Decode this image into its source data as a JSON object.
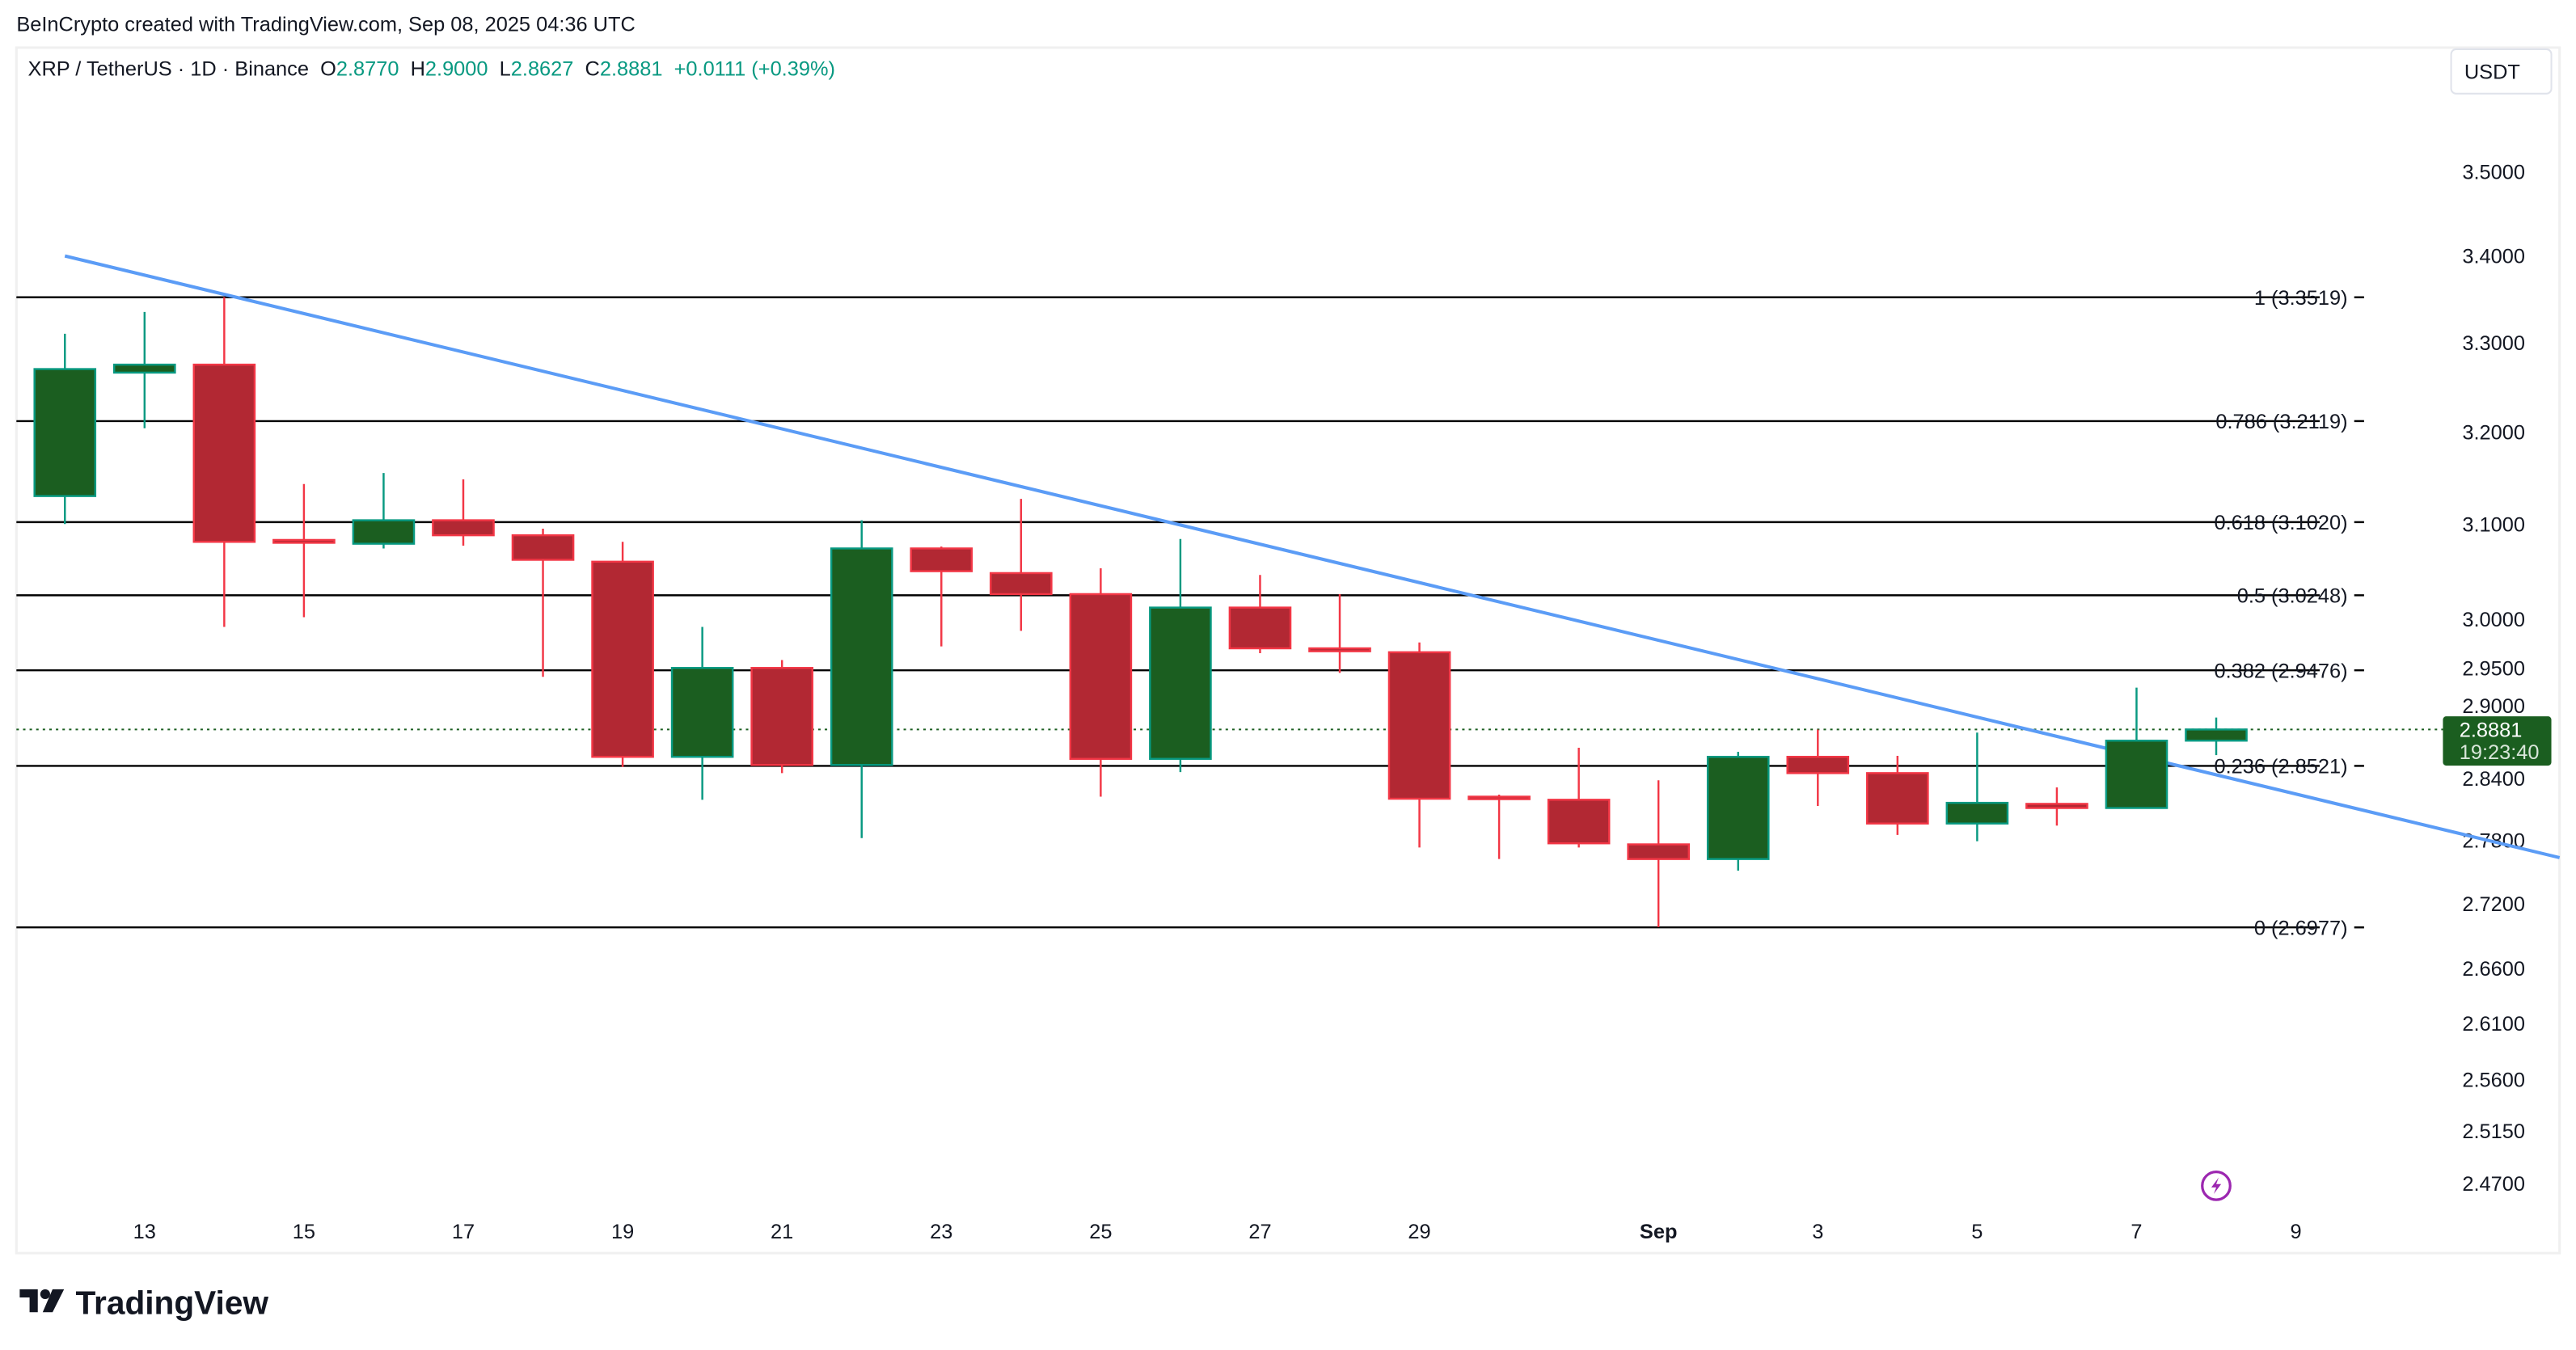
{
  "attribution": "BeInCrypto created with TradingView.com, Sep 08, 2025 04:36 UTC",
  "legend": {
    "symbol": "XRP / TetherUS · 1D · Binance",
    "o_label": "O",
    "o_value": "2.8770",
    "h_label": "H",
    "h_value": "2.9000",
    "l_label": "L",
    "l_value": "2.8627",
    "c_label": "C",
    "c_value": "2.8881",
    "change": "+0.0111 (+0.39%)"
  },
  "currency_button": "USDT",
  "last_price": {
    "value": "2.8881",
    "countdown": "19:23:40"
  },
  "logo_text": "TradingView",
  "colors": {
    "up_body": "#1b5e20",
    "up_border": "#089981",
    "down_body": "#b22833",
    "down_border": "#f23645",
    "trendline": "#5b9cf6",
    "fib": "#000000",
    "legend_value": "#089981",
    "alert_icon": "#9c27b0"
  },
  "icons": {
    "alert": "lightning-icon",
    "logo": "tradingview-logo"
  },
  "chart_data": {
    "type": "candlestick",
    "y_scale": "log",
    "ylim": [
      2.44,
      3.6
    ],
    "grid": false,
    "x_ticks": [
      {
        "label": "13",
        "date": "2025-08-13"
      },
      {
        "label": "15",
        "date": "2025-08-15"
      },
      {
        "label": "17",
        "date": "2025-08-17"
      },
      {
        "label": "19",
        "date": "2025-08-19"
      },
      {
        "label": "21",
        "date": "2025-08-21"
      },
      {
        "label": "23",
        "date": "2025-08-23"
      },
      {
        "label": "25",
        "date": "2025-08-25"
      },
      {
        "label": "27",
        "date": "2025-08-27"
      },
      {
        "label": "29",
        "date": "2025-08-29"
      },
      {
        "label": "Sep",
        "date": "2025-09-01"
      },
      {
        "label": "3",
        "date": "2025-09-03"
      },
      {
        "label": "5",
        "date": "2025-09-05"
      },
      {
        "label": "7",
        "date": "2025-09-07"
      },
      {
        "label": "9",
        "date": "2025-09-09"
      }
    ],
    "y_ticks": [
      "3.5000",
      "3.4000",
      "3.3000",
      "3.2000",
      "3.1000",
      "3.0000",
      "2.9500",
      "2.9000",
      "2.8400",
      "2.7800",
      "2.7200",
      "2.6600",
      "2.6100",
      "2.5600",
      "2.5150",
      "2.4700"
    ],
    "candles": [
      {
        "date": "2025-08-12",
        "o": 3.13,
        "h": 3.31,
        "l": 3.1,
        "c": 3.27
      },
      {
        "date": "2025-08-13",
        "o": 3.266,
        "h": 3.335,
        "l": 3.204,
        "c": 3.275
      },
      {
        "date": "2025-08-14",
        "o": 3.275,
        "h": 3.352,
        "l": 2.992,
        "c": 3.081
      },
      {
        "date": "2025-08-15",
        "o": 3.083,
        "h": 3.143,
        "l": 3.002,
        "c": 3.08
      },
      {
        "date": "2025-08-16",
        "o": 3.079,
        "h": 3.155,
        "l": 3.074,
        "c": 3.104
      },
      {
        "date": "2025-08-17",
        "o": 3.104,
        "h": 3.148,
        "l": 3.077,
        "c": 3.088
      },
      {
        "date": "2025-08-18",
        "o": 3.088,
        "h": 3.095,
        "l": 2.941,
        "c": 3.062
      },
      {
        "date": "2025-08-19",
        "o": 3.06,
        "h": 3.081,
        "l": 2.851,
        "c": 2.861
      },
      {
        "date": "2025-08-20",
        "o": 2.861,
        "h": 2.992,
        "l": 2.819,
        "c": 2.95
      },
      {
        "date": "2025-08-21",
        "o": 2.95,
        "h": 2.958,
        "l": 2.845,
        "c": 2.853
      },
      {
        "date": "2025-08-22",
        "o": 2.853,
        "h": 3.104,
        "l": 2.782,
        "c": 3.074
      },
      {
        "date": "2025-08-23",
        "o": 3.074,
        "h": 3.076,
        "l": 2.972,
        "c": 3.05
      },
      {
        "date": "2025-08-24",
        "o": 3.048,
        "h": 3.127,
        "l": 2.988,
        "c": 3.026
      },
      {
        "date": "2025-08-25",
        "o": 3.026,
        "h": 3.053,
        "l": 2.822,
        "c": 2.859
      },
      {
        "date": "2025-08-26",
        "o": 2.859,
        "h": 3.084,
        "l": 2.846,
        "c": 3.012
      },
      {
        "date": "2025-08-27",
        "o": 3.012,
        "h": 3.046,
        "l": 2.965,
        "c": 2.97
      },
      {
        "date": "2025-08-28",
        "o": 2.97,
        "h": 3.026,
        "l": 2.945,
        "c": 2.967
      },
      {
        "date": "2025-08-29",
        "o": 2.966,
        "h": 2.976,
        "l": 2.773,
        "c": 2.82
      },
      {
        "date": "2025-08-30",
        "o": 2.822,
        "h": 2.824,
        "l": 2.762,
        "c": 2.82
      },
      {
        "date": "2025-08-31",
        "o": 2.819,
        "h": 2.87,
        "l": 2.773,
        "c": 2.777
      },
      {
        "date": "2025-09-01",
        "o": 2.776,
        "h": 2.838,
        "l": 2.698,
        "c": 2.762
      },
      {
        "date": "2025-09-02",
        "o": 2.762,
        "h": 2.866,
        "l": 2.751,
        "c": 2.861
      },
      {
        "date": "2025-09-03",
        "o": 2.861,
        "h": 2.888,
        "l": 2.813,
        "c": 2.845
      },
      {
        "date": "2025-09-04",
        "o": 2.845,
        "h": 2.862,
        "l": 2.785,
        "c": 2.796
      },
      {
        "date": "2025-09-05",
        "o": 2.796,
        "h": 2.885,
        "l": 2.779,
        "c": 2.816
      },
      {
        "date": "2025-09-06",
        "o": 2.815,
        "h": 2.831,
        "l": 2.794,
        "c": 2.811
      },
      {
        "date": "2025-09-07",
        "o": 2.811,
        "h": 2.93,
        "l": 2.811,
        "c": 2.877
      },
      {
        "date": "2025-09-08",
        "o": 2.877,
        "h": 2.9,
        "l": 2.8627,
        "c": 2.8881
      }
    ],
    "fib_levels": [
      {
        "label": "1 (3.3519)",
        "price": 3.3519
      },
      {
        "label": "0.786 (3.2119)",
        "price": 3.2119
      },
      {
        "label": "0.618 (3.1020)",
        "price": 3.102
      },
      {
        "label": "0.5 (3.0248)",
        "price": 3.0248
      },
      {
        "label": "0.382 (2.9476)",
        "price": 2.9476
      },
      {
        "label": "0.236 (2.8521)",
        "price": 2.8521
      },
      {
        "label": "0 (2.6977)",
        "price": 2.6977
      }
    ],
    "trendline": [
      {
        "date": "2025-08-12",
        "price": 3.4
      },
      {
        "date": "2025-09-12",
        "price": 2.769
      }
    ]
  }
}
